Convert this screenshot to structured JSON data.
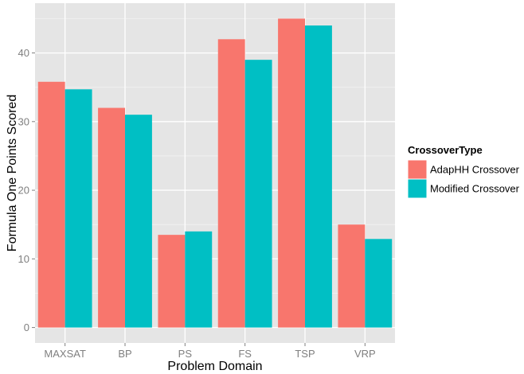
{
  "chart_data": {
    "type": "bar",
    "title": "",
    "xlabel": "Problem Domain",
    "ylabel": "Formula One Points Scored",
    "categories": [
      "MAXSAT",
      "BP",
      "PS",
      "FS",
      "TSP",
      "VRP"
    ],
    "series": [
      {
        "name": "AdapHH Crossover",
        "color": "#F8766D",
        "values": [
          35.8,
          32.0,
          13.5,
          42.0,
          45.0,
          15.0
        ]
      },
      {
        "name": "Modified Crossover",
        "color": "#00BFC4",
        "values": [
          34.7,
          31.0,
          14.0,
          39.0,
          44.0,
          12.9
        ]
      }
    ],
    "ylim": [
      -2.25,
      47.25
    ],
    "yticks": [
      0,
      10,
      20,
      30,
      40
    ],
    "ytick_labels": [
      "0",
      "10",
      "20",
      "30",
      "40"
    ],
    "grid": true,
    "legend": {
      "title": "CrossoverType",
      "position": "right"
    },
    "panel_color": "#E5E5E5",
    "grid_color": "#FFFFFF"
  }
}
